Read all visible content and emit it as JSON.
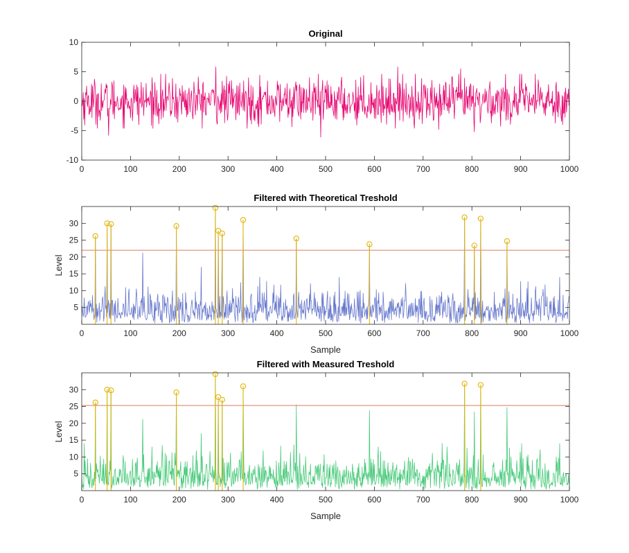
{
  "colors": {
    "original": "#e6006e",
    "theoretical": "#6677cc",
    "measured": "#44c977",
    "peaks": "#e3b505",
    "threshold": "#d97a5f"
  },
  "chart_data": [
    {
      "type": "line",
      "title": "Original",
      "xlabel": "",
      "ylabel": "",
      "xlim": [
        0,
        1000
      ],
      "ylim": [
        -10,
        10
      ],
      "xticks": [
        "0",
        "100",
        "200",
        "300",
        "400",
        "500",
        "600",
        "700",
        "800",
        "900",
        "1000"
      ],
      "yticks": [
        "-10",
        "-5",
        "0",
        "5",
        "10"
      ],
      "samples": 1000,
      "series_amplitude": 6,
      "notable_points": [
        {
          "x": 55,
          "y": -5.8
        },
        {
          "x": 275,
          "y": 5.8
        },
        {
          "x": 490,
          "y": -6.1
        },
        {
          "x": 648,
          "y": 5.8
        },
        {
          "x": 777,
          "y": 5.5
        },
        {
          "x": 732,
          "y": -4.8
        },
        {
          "x": 805,
          "y": -5.2
        }
      ]
    },
    {
      "type": "line",
      "title": "Filtered with Theoretical Treshold",
      "xlabel": "Sample",
      "ylabel": "Level",
      "xlim": [
        0,
        1000
      ],
      "ylim": [
        0,
        35
      ],
      "xticks": [
        "0",
        "100",
        "200",
        "300",
        "400",
        "500",
        "600",
        "700",
        "800",
        "900",
        "1000"
      ],
      "yticks": [
        "5",
        "10",
        "15",
        "20",
        "25",
        "30"
      ],
      "threshold": 22,
      "peaks": [
        {
          "x": 28,
          "y": 26.2
        },
        {
          "x": 52,
          "y": 30
        },
        {
          "x": 60,
          "y": 29.8
        },
        {
          "x": 194,
          "y": 29.2
        },
        {
          "x": 274,
          "y": 34.6
        },
        {
          "x": 280,
          "y": 27.8
        },
        {
          "x": 288,
          "y": 27
        },
        {
          "x": 331,
          "y": 31
        },
        {
          "x": 440,
          "y": 25.5
        },
        {
          "x": 590,
          "y": 23.8
        },
        {
          "x": 785,
          "y": 31.8
        },
        {
          "x": 805,
          "y": 23.4
        },
        {
          "x": 818,
          "y": 31.4
        },
        {
          "x": 872,
          "y": 24.7
        }
      ],
      "notable_points": [
        {
          "x": 125,
          "y": 21.2
        },
        {
          "x": 245,
          "y": 17
        },
        {
          "x": 980,
          "y": 14
        }
      ]
    },
    {
      "type": "line",
      "title": "Filtered with Measured Treshold",
      "xlabel": "Sample",
      "ylabel": "Level",
      "xlim": [
        0,
        1000
      ],
      "ylim": [
        0,
        35
      ],
      "xticks": [
        "0",
        "100",
        "200",
        "300",
        "400",
        "500",
        "600",
        "700",
        "800",
        "900",
        "1000"
      ],
      "yticks": [
        "5",
        "10",
        "15",
        "20",
        "25",
        "30"
      ],
      "threshold": 25.3,
      "peaks": [
        {
          "x": 28,
          "y": 26.2
        },
        {
          "x": 52,
          "y": 30
        },
        {
          "x": 60,
          "y": 29.8
        },
        {
          "x": 194,
          "y": 29.2
        },
        {
          "x": 274,
          "y": 34.6
        },
        {
          "x": 280,
          "y": 27.8
        },
        {
          "x": 288,
          "y": 27
        },
        {
          "x": 331,
          "y": 31
        },
        {
          "x": 785,
          "y": 31.8
        },
        {
          "x": 818,
          "y": 31.4
        }
      ],
      "notable_points": [
        {
          "x": 125,
          "y": 21.2
        },
        {
          "x": 245,
          "y": 17
        },
        {
          "x": 440,
          "y": 25.5
        },
        {
          "x": 590,
          "y": 23.8
        },
        {
          "x": 805,
          "y": 23.4
        },
        {
          "x": 872,
          "y": 24.7
        },
        {
          "x": 980,
          "y": 14
        }
      ]
    }
  ]
}
